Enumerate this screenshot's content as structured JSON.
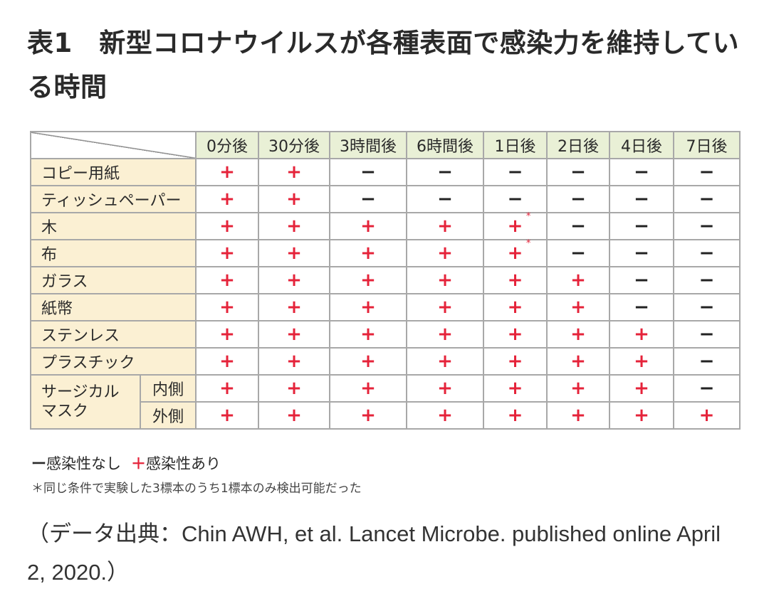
{
  "title": "表1　新型コロナウイルスが各種表面で感染力を維持している時間",
  "columns": [
    "0分後",
    "30分後",
    "3時間後",
    "6時間後",
    "1日後",
    "2日後",
    "4日後",
    "7日後"
  ],
  "rows": [
    {
      "label": "コピー用紙",
      "values": [
        "+",
        "+",
        "−",
        "−",
        "−",
        "−",
        "−",
        "−"
      ]
    },
    {
      "label": "ティッシュペーパー",
      "values": [
        "+",
        "+",
        "−",
        "−",
        "−",
        "−",
        "−",
        "−"
      ]
    },
    {
      "label": "木",
      "values": [
        "+",
        "+",
        "+",
        "+",
        "+*",
        "−",
        "−",
        "−"
      ]
    },
    {
      "label": "布",
      "values": [
        "+",
        "+",
        "+",
        "+",
        "+*",
        "−",
        "−",
        "−"
      ]
    },
    {
      "label": "ガラス",
      "values": [
        "+",
        "+",
        "+",
        "+",
        "+",
        "+",
        "−",
        "−"
      ]
    },
    {
      "label": "紙幣",
      "values": [
        "+",
        "+",
        "+",
        "+",
        "+",
        "+",
        "−",
        "−"
      ]
    },
    {
      "label": "ステンレス",
      "values": [
        "+",
        "+",
        "+",
        "+",
        "+",
        "+",
        "+",
        "−"
      ]
    },
    {
      "label": "プラスチック",
      "values": [
        "+",
        "+",
        "+",
        "+",
        "+",
        "+",
        "+",
        "−"
      ]
    }
  ],
  "mask": {
    "label_line1": "サージカル",
    "label_line2": "マスク",
    "rows": [
      {
        "label": "内側",
        "values": [
          "+",
          "+",
          "+",
          "+",
          "+",
          "+",
          "+",
          "−"
        ]
      },
      {
        "label": "外側",
        "values": [
          "+",
          "+",
          "+",
          "+",
          "+",
          "+",
          "+",
          "+"
        ]
      }
    ]
  },
  "legend": {
    "minus_symbol": "ー",
    "minus_label": "感染性なし",
    "plus_symbol": "＋",
    "plus_label": "感染性あり"
  },
  "footnote": "＊同じ条件で実験した3標本のうち1標本のみ検出可能だった",
  "source": "（データ出典：Chin AWH, et al. Lancet Microbe. published online April 2, 2020.）"
}
